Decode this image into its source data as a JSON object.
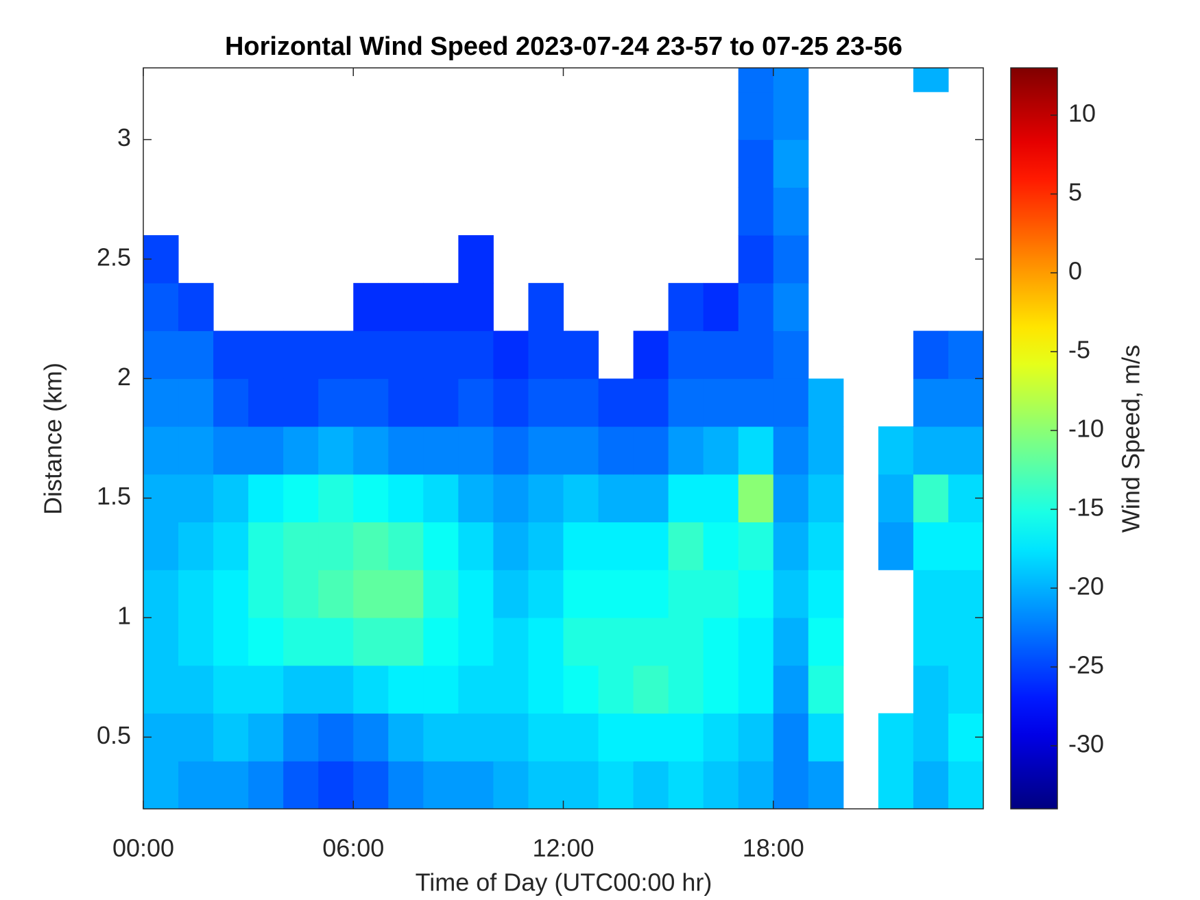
{
  "chart_data": {
    "type": "heatmap",
    "title": "Horizontal Wind Speed 2023-07-24 23-57 to 07-25 23-56",
    "x_label": "Time of Day (UTC00:00 hr)",
    "y_label": "Distance (km)",
    "colorbar_label": "Wind Speed, m/s",
    "colormap": "jet",
    "xlim": [
      0,
      24
    ],
    "xticks": [
      {
        "value": 0,
        "label": "00:00"
      },
      {
        "value": 6,
        "label": "06:00"
      },
      {
        "value": 12,
        "label": "12:00"
      },
      {
        "value": 18,
        "label": "18:00"
      }
    ],
    "ylim": [
      0.2,
      3.3
    ],
    "yticks": [
      0.5,
      1,
      1.5,
      2,
      2.5,
      3
    ],
    "clim": [
      -34,
      13
    ],
    "cticks": [
      -30,
      -25,
      -20,
      -15,
      -10,
      -5,
      0,
      5,
      10
    ],
    "x_edges": [
      0,
      1,
      2,
      3,
      4,
      5,
      6,
      7,
      8,
      9,
      10,
      11,
      12,
      13,
      14,
      15,
      16,
      17,
      18,
      19,
      20,
      21,
      22,
      23,
      24
    ],
    "y_edges": [
      0.2,
      0.4,
      0.6,
      0.8,
      1.0,
      1.2,
      1.4,
      1.6,
      1.8,
      2.0,
      2.2,
      2.4,
      2.6,
      2.8,
      3.0,
      3.2,
      3.3
    ],
    "z": [
      [
        -20,
        -21,
        -21,
        -22,
        -24,
        -25,
        -24,
        -22,
        -21,
        -21,
        -20,
        -19,
        -19,
        -18,
        -19,
        -18,
        -19,
        -20,
        -22,
        -21,
        null,
        -18,
        -20,
        -18
      ],
      [
        -20,
        -20,
        -19,
        -20,
        -22,
        -23,
        -22,
        -20,
        -19,
        -19,
        -19,
        -18,
        -18,
        -17,
        -17,
        -17,
        -18,
        -19,
        -22,
        -18,
        null,
        -18,
        -19,
        -17
      ],
      [
        -19,
        -19,
        -18,
        -18,
        -19,
        -19,
        -18,
        -17,
        -17,
        -18,
        -18,
        -17,
        -16,
        -15,
        -14,
        -15,
        -16,
        -17,
        -21,
        -15,
        null,
        null,
        -19,
        -18
      ],
      [
        -19,
        -18,
        -17,
        -16,
        -15,
        -15,
        -14,
        -14,
        -16,
        -17,
        -18,
        -17,
        -15,
        -15,
        -15,
        -15,
        -16,
        -17,
        -20,
        -16,
        null,
        null,
        -18,
        -18
      ],
      [
        -19,
        -18,
        -17,
        -15,
        -14,
        -13,
        -12,
        -12,
        -15,
        -17,
        -19,
        -18,
        -16,
        -16,
        -16,
        -15,
        -15,
        -16,
        -19,
        -17,
        null,
        null,
        -18,
        -18
      ],
      [
        -20,
        -19,
        -18,
        -15,
        -14,
        -14,
        -13,
        -14,
        -16,
        -18,
        -20,
        -19,
        -17,
        -17,
        -17,
        -14,
        -16,
        -15,
        -20,
        -18,
        null,
        -21,
        -17,
        -17
      ],
      [
        -20,
        -20,
        -19,
        -17,
        -16,
        -15,
        -16,
        -17,
        -18,
        -20,
        -21,
        -20,
        -19,
        -20,
        -20,
        -17,
        -17,
        -10,
        -21,
        -19,
        null,
        -20,
        -14,
        -18
      ],
      [
        -21,
        -21,
        -22,
        -22,
        -21,
        -20,
        -21,
        -22,
        -22,
        -22,
        -23,
        -22,
        -22,
        -23,
        -23,
        -21,
        -20,
        -18,
        -22,
        -20,
        null,
        -19,
        -20,
        -20
      ],
      [
        -22,
        -22,
        -24,
        -25,
        -25,
        -24,
        -24,
        -25,
        -25,
        -24,
        -25,
        -24,
        -24,
        -25,
        -25,
        -23,
        -23,
        -23,
        -23,
        -20,
        null,
        null,
        -22,
        -22
      ],
      [
        -23,
        -23,
        -25,
        -25,
        -25,
        -25,
        -25,
        -25,
        -25,
        -25,
        -26,
        -25,
        -25,
        null,
        -26,
        -24,
        -24,
        -24,
        -23,
        null,
        null,
        null,
        -24,
        -23
      ],
      [
        -24,
        -25,
        null,
        null,
        null,
        null,
        -26,
        -26,
        -26,
        -26,
        null,
        -25,
        null,
        null,
        null,
        -25,
        -26,
        -24,
        -22,
        null,
        null,
        null,
        null,
        null
      ],
      [
        -25,
        null,
        null,
        null,
        null,
        null,
        null,
        null,
        null,
        -26,
        null,
        null,
        null,
        null,
        null,
        null,
        null,
        -25,
        -23,
        null,
        null,
        null,
        null,
        null
      ],
      [
        null,
        null,
        null,
        null,
        null,
        null,
        null,
        null,
        null,
        null,
        null,
        null,
        null,
        null,
        null,
        null,
        null,
        -24,
        -22,
        null,
        null,
        null,
        null,
        null
      ],
      [
        null,
        null,
        null,
        null,
        null,
        null,
        null,
        null,
        null,
        null,
        null,
        null,
        null,
        null,
        null,
        null,
        null,
        -24,
        -21,
        null,
        null,
        null,
        null,
        null
      ],
      [
        null,
        null,
        null,
        null,
        null,
        null,
        null,
        null,
        null,
        null,
        null,
        null,
        null,
        null,
        null,
        null,
        null,
        -23,
        -22,
        null,
        null,
        null,
        null,
        null
      ],
      [
        null,
        null,
        null,
        null,
        null,
        null,
        null,
        null,
        null,
        null,
        null,
        null,
        null,
        null,
        null,
        null,
        null,
        -23,
        -22,
        null,
        null,
        null,
        -20,
        null
      ]
    ]
  }
}
